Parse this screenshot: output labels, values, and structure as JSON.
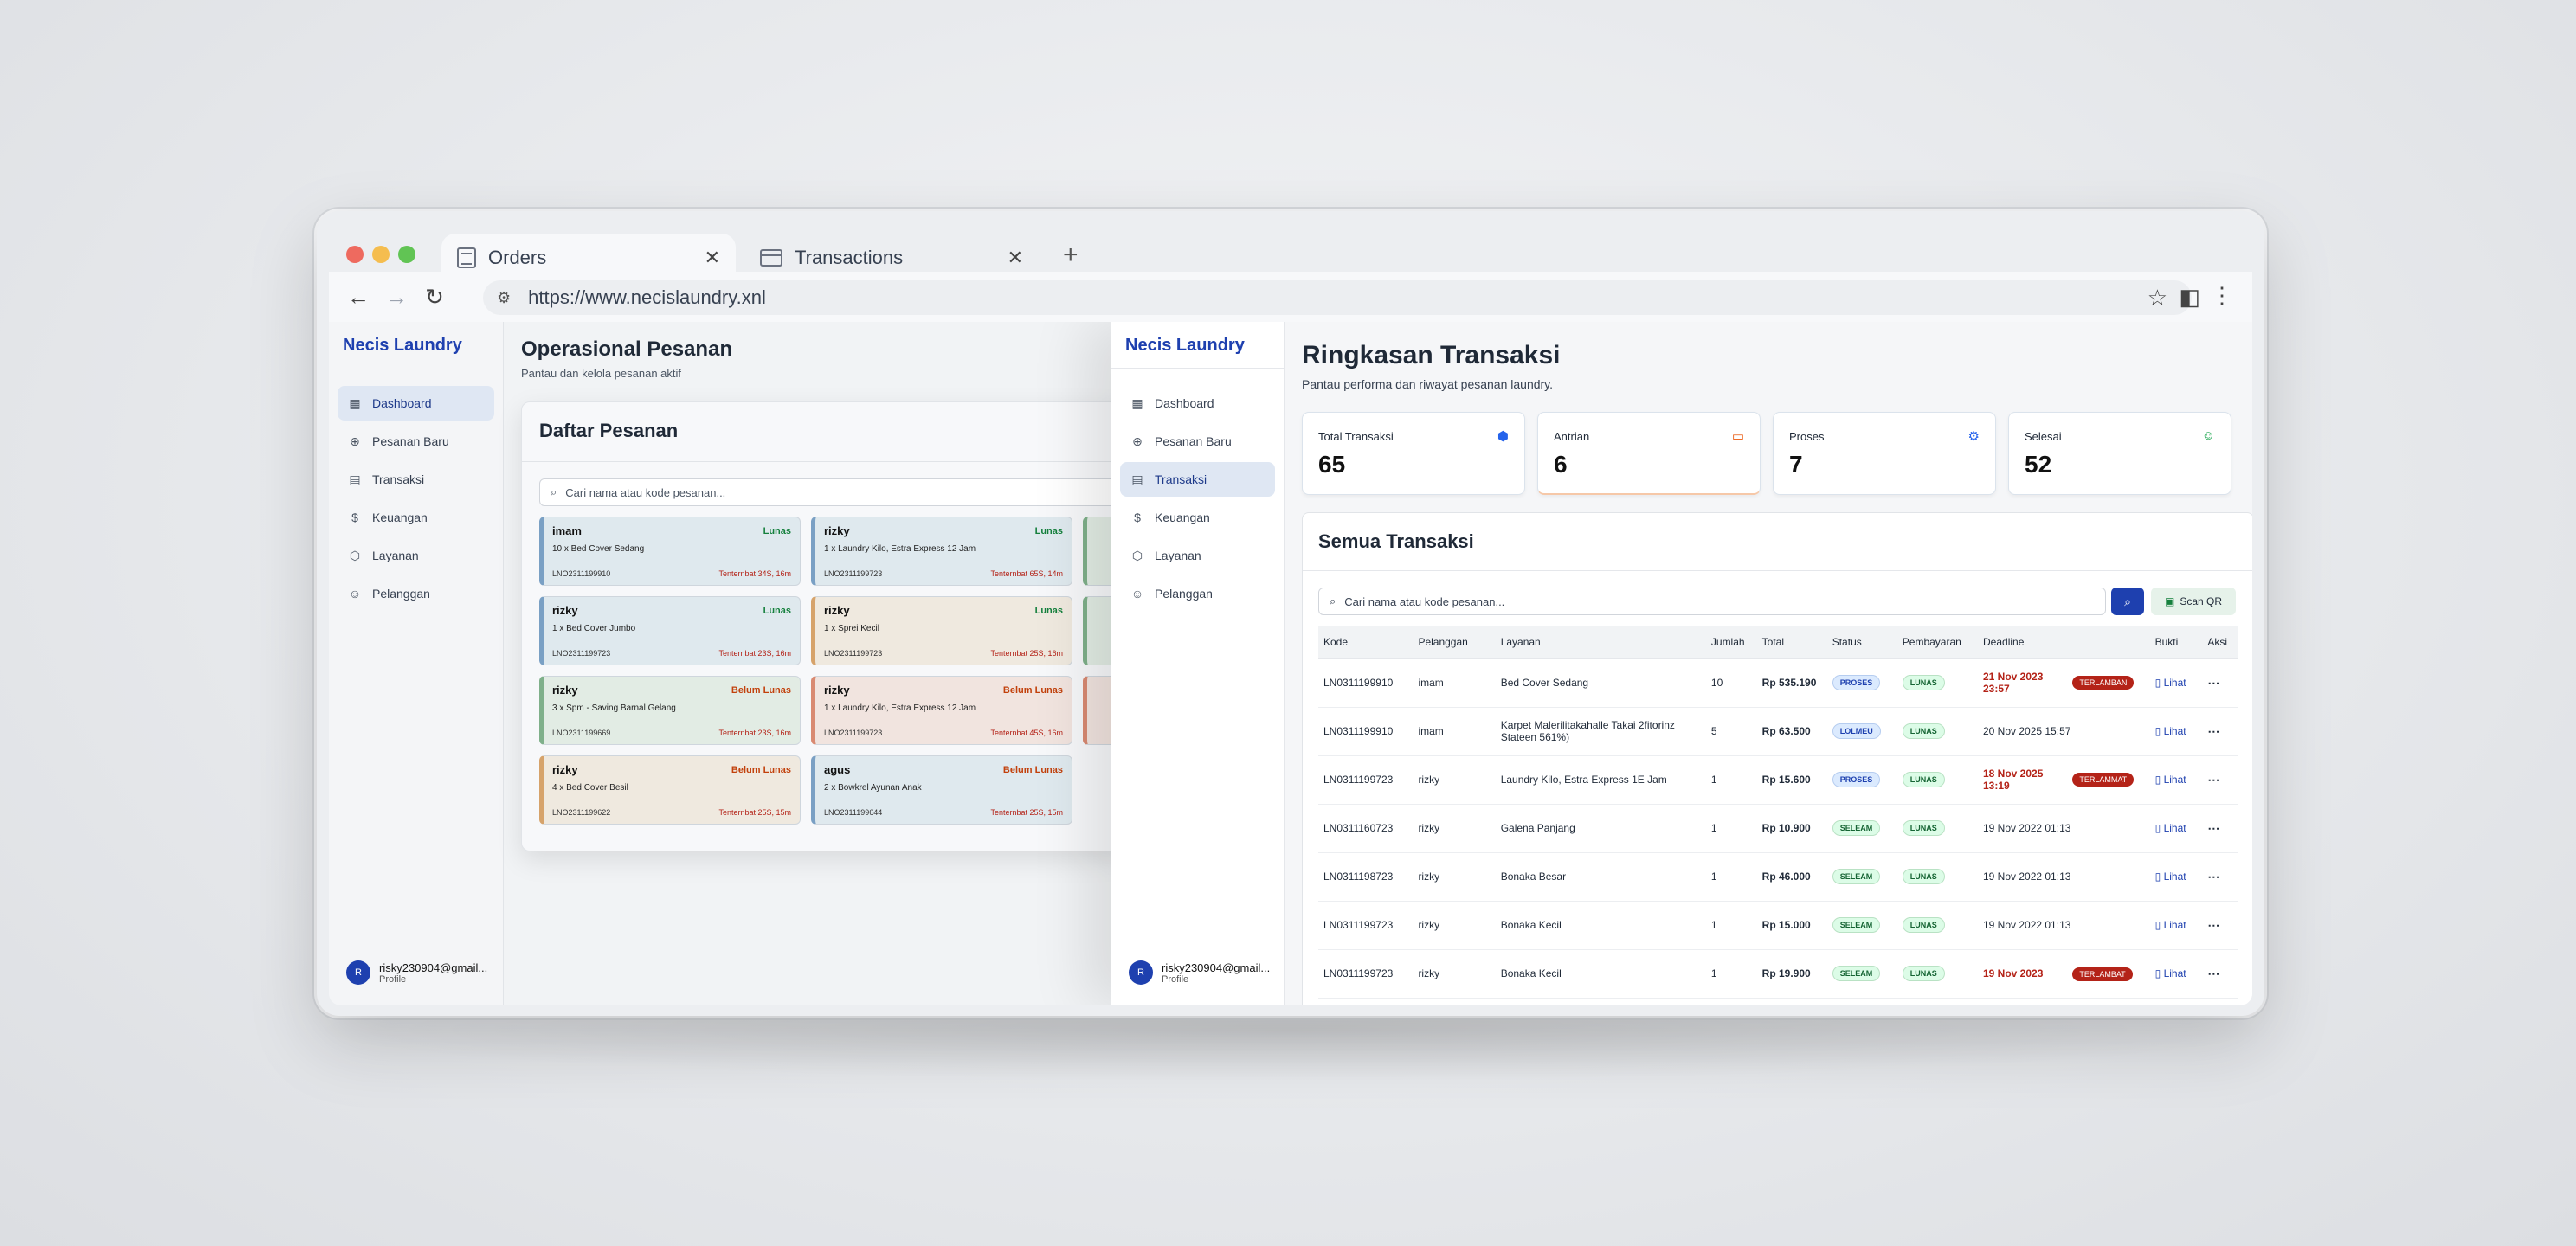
{
  "browser": {
    "tabs": [
      {
        "label": "Orders",
        "active": true
      },
      {
        "label": "Transactions",
        "active": false
      }
    ],
    "url": "https://www.necislaundry.xnl"
  },
  "left_app": {
    "brand": "Necis Laundry",
    "menu": [
      "Dashboard",
      "Pesanan Baru",
      "Transaksi",
      "Keuangan",
      "Layanan",
      "Pelanggan"
    ],
    "selected": "Dashboard",
    "page_title": "Operasional Pesanan",
    "page_subtitle": "Pantau dan kelola pesanan aktif",
    "panel_title": "Daftar Pesanan",
    "search_placeholder": "Cari nama atau kode pesanan...",
    "cards": [
      {
        "name": "imam",
        "status": "Lunas",
        "item": "10 x Bed Cover Sedang",
        "code": "LNO2311199910",
        "deadline": "Tenternbat 34S, 16m"
      },
      {
        "name": "rizky",
        "status": "Lunas",
        "item": "1 x Laundry Kilo, Estra Express 12 Jam",
        "code": "LNO2311199723",
        "deadline": "Tenternbat 65S, 14m"
      },
      {
        "name": "rizky",
        "status": "Lunas",
        "item": "1 x Bed Cover Jumbo",
        "code": "LNO2311199723",
        "deadline": "Tenternbat 23S, 16m"
      },
      {
        "name": "rizky",
        "status": "Lunas",
        "item": "1 x Sprei Kecil",
        "code": "LNO2311199723",
        "deadline": "Tenternbat 25S, 16m"
      },
      {
        "name": "rizky",
        "status": "Belum Lunas",
        "item": "3 x Spm - Saving Barnal Gelang",
        "code": "LNO2311199669",
        "deadline": "Tenternbat 23S, 16m"
      },
      {
        "name": "rizky",
        "status": "Belum Lunas",
        "item": "1 x Laundry Kilo, Estra Express 12 Jam",
        "code": "LNO2311199723",
        "deadline": "Tenternbat 45S, 16m"
      },
      {
        "name": "rizky",
        "status": "Belum Lunas",
        "item": "4 x Bed Cover Besil",
        "code": "LNO2311199622",
        "deadline": "Tenternbat 25S, 15m"
      },
      {
        "name": "agus",
        "status": "Belum Lunas",
        "item": "2 x Bowkrel Ayunan Anak",
        "code": "LNO2311199644",
        "deadline": "Tenternbat 25S, 15m"
      }
    ],
    "profile": {
      "initial": "R",
      "email": "risky230904@gmail...",
      "sub": "Profile"
    }
  },
  "right_app": {
    "brand": "Necis Laundry",
    "menu": [
      "Dashboard",
      "Pesanan Baru",
      "Transaksi",
      "Keuangan",
      "Layanan",
      "Pelanggan"
    ],
    "selected": "Transaksi",
    "page_title": "Ringkasan Transaksi",
    "page_subtitle": "Pantau performa dan riwayat pesanan laundry.",
    "stats": [
      {
        "label": "Total Transaksi",
        "value": "65",
        "icon": "box-icon",
        "color": "#2563eb"
      },
      {
        "label": "Antrian",
        "value": "6",
        "icon": "card-icon",
        "color": "#ea580c"
      },
      {
        "label": "Proses",
        "value": "7",
        "icon": "gear-icon",
        "color": "#2563eb"
      },
      {
        "label": "Selesai",
        "value": "52",
        "icon": "users-icon",
        "color": "#16a34a"
      }
    ],
    "panel_title": "Semua Transaksi",
    "search_placeholder": "Cari nama atau kode pesanan...",
    "scan_label": "Scan QR",
    "columns": [
      "Kode",
      "Pelanggan",
      "Layanan",
      "Jumlah",
      "Total",
      "Status",
      "Pembayaran",
      "Deadline",
      "Bukti",
      "Aksi"
    ],
    "rows": [
      {
        "kode": "LN0311199910",
        "pelanggan": "imam",
        "layanan": "Bed Cover Sedang",
        "jumlah": "10",
        "total": "Rp 535.190",
        "status": "PROSES",
        "bayar": "LUNAS",
        "deadline": "21 Nov 2023 23:57",
        "late": true,
        "badge": "TERLAMBAN",
        "bukti": "Lihat"
      },
      {
        "kode": "LN0311199910",
        "pelanggan": "imam",
        "layanan": "Karpet Malerilitakahalle Takai 2fitorinz Stateen 561%)",
        "jumlah": "5",
        "total": "Rp 63.500",
        "status": "LOLMEU",
        "bayar": "LUNAS",
        "deadline": "20 Nov 2025 15:57",
        "late": false,
        "badge": "",
        "bukti": "Lihat"
      },
      {
        "kode": "LN0311199723",
        "pelanggan": "rizky",
        "layanan": "Laundry Kilo, Estra Express 1E Jam",
        "jumlah": "1",
        "total": "Rp 15.600",
        "status": "PROSES",
        "bayar": "LUNAS",
        "deadline": "18 Nov 2025 13:19",
        "late": true,
        "badge": "TERLAMMAT",
        "bukti": "Lihat"
      },
      {
        "kode": "LN0311160723",
        "pelanggan": "rizky",
        "layanan": "Galena Panjang",
        "jumlah": "1",
        "total": "Rp 10.900",
        "status": "SELEAM",
        "bayar": "LUNAS",
        "deadline": "19 Nov 2022 01:13",
        "late": false,
        "badge": "",
        "bukti": "Lihat"
      },
      {
        "kode": "LN0311198723",
        "pelanggan": "rizky",
        "layanan": "Bonaka Besar",
        "jumlah": "1",
        "total": "Rp 46.000",
        "status": "SELEAM",
        "bayar": "LUNAS",
        "deadline": "19 Nov 2022 01:13",
        "late": false,
        "badge": "",
        "bukti": "Lihat"
      },
      {
        "kode": "LN0311199723",
        "pelanggan": "rizky",
        "layanan": "Bonaka Kecil",
        "jumlah": "1",
        "total": "Rp 15.000",
        "status": "SELEAM",
        "bayar": "LUNAS",
        "deadline": "19 Nov 2022 01:13",
        "late": false,
        "badge": "",
        "bukti": "Lihat"
      },
      {
        "kode": "LN0311199723",
        "pelanggan": "rizky",
        "layanan": "Bonaka Kecil",
        "jumlah": "1",
        "total": "Rp 19.900",
        "status": "SELEAM",
        "bayar": "LUNAS",
        "deadline": "19 Nov 2023",
        "late": true,
        "badge": "TERLAMBAT",
        "bukti": "Lihat"
      }
    ],
    "profile": {
      "initial": "R",
      "email": "risky230904@gmail...",
      "sub": "Profile"
    }
  }
}
